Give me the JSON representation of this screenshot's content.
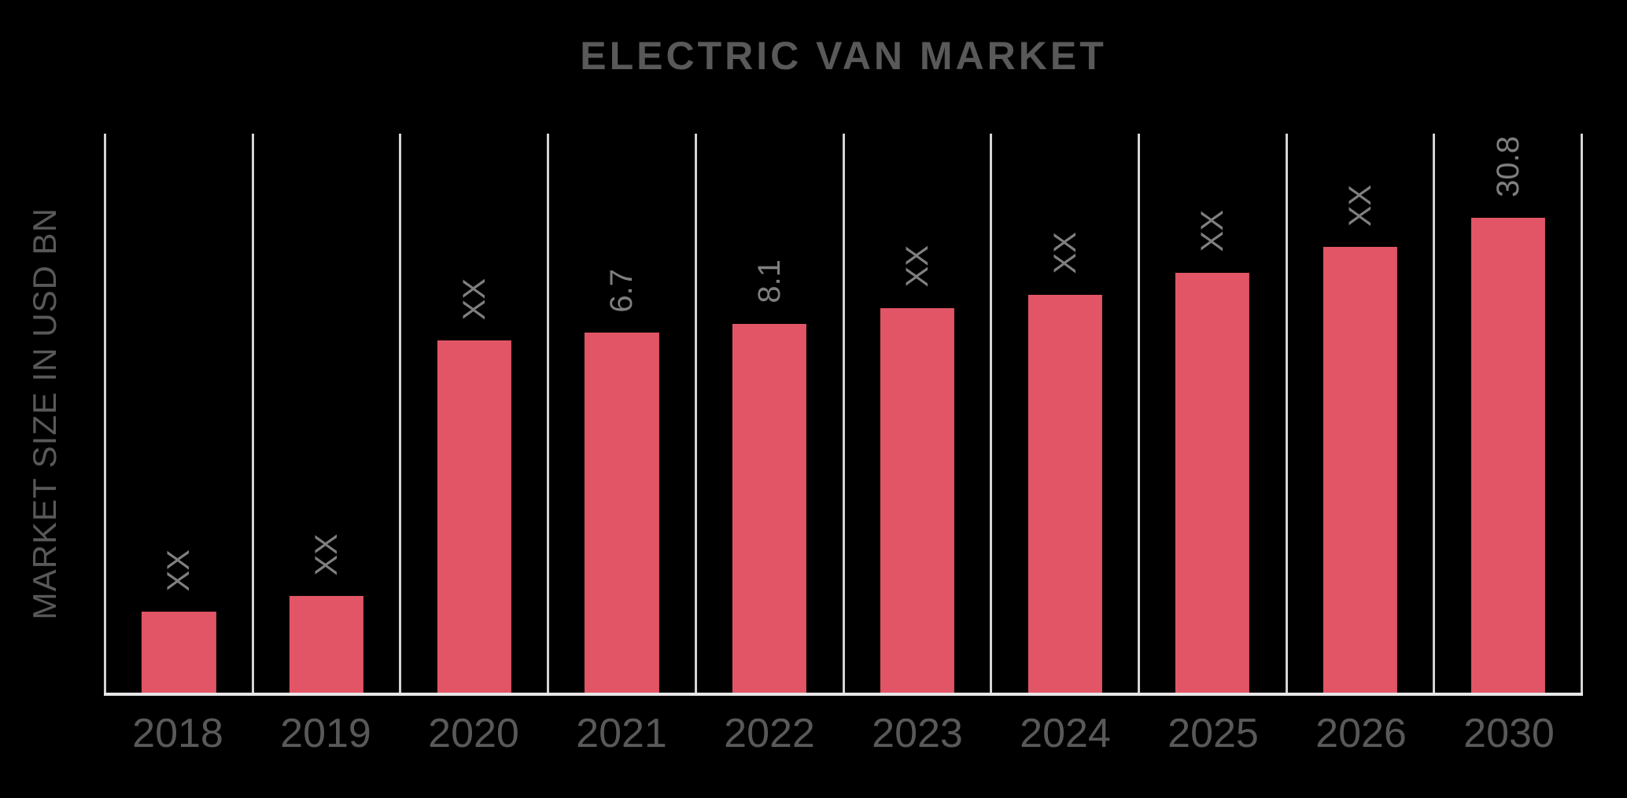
{
  "chart_data": {
    "type": "bar",
    "title": "ELECTRIC VAN MARKET",
    "xlabel": "",
    "ylabel": "MARKET SIZE IN USD BN",
    "categories": [
      "2018",
      "2019",
      "2020",
      "2021",
      "2022",
      "2023",
      "2024",
      "2025",
      "2026",
      "2030"
    ],
    "labels": [
      "XX",
      "XX",
      "XX",
      "6.7",
      "8.1",
      "XX",
      "XX",
      "XX",
      "XX",
      "30.8"
    ],
    "values": [
      null,
      null,
      null,
      6.7,
      8.1,
      null,
      null,
      null,
      null,
      30.8
    ],
    "bar_height_pct": [
      14.7,
      17.5,
      63.1,
      64.5,
      66.1,
      68.9,
      71.3,
      75.2,
      79.8,
      85.0
    ],
    "value_label_rotation_deg": -90,
    "y_tick_labels": [],
    "grid": "vertical-column-separators",
    "legend": null,
    "colors": {
      "background": "#000000",
      "bar": "#e15566",
      "grid_line": "#d4d4d4",
      "axis_line": "#e8e6e6",
      "title": "#595959",
      "tick_label": "#595959",
      "value_label": "#7f7f7f"
    }
  }
}
